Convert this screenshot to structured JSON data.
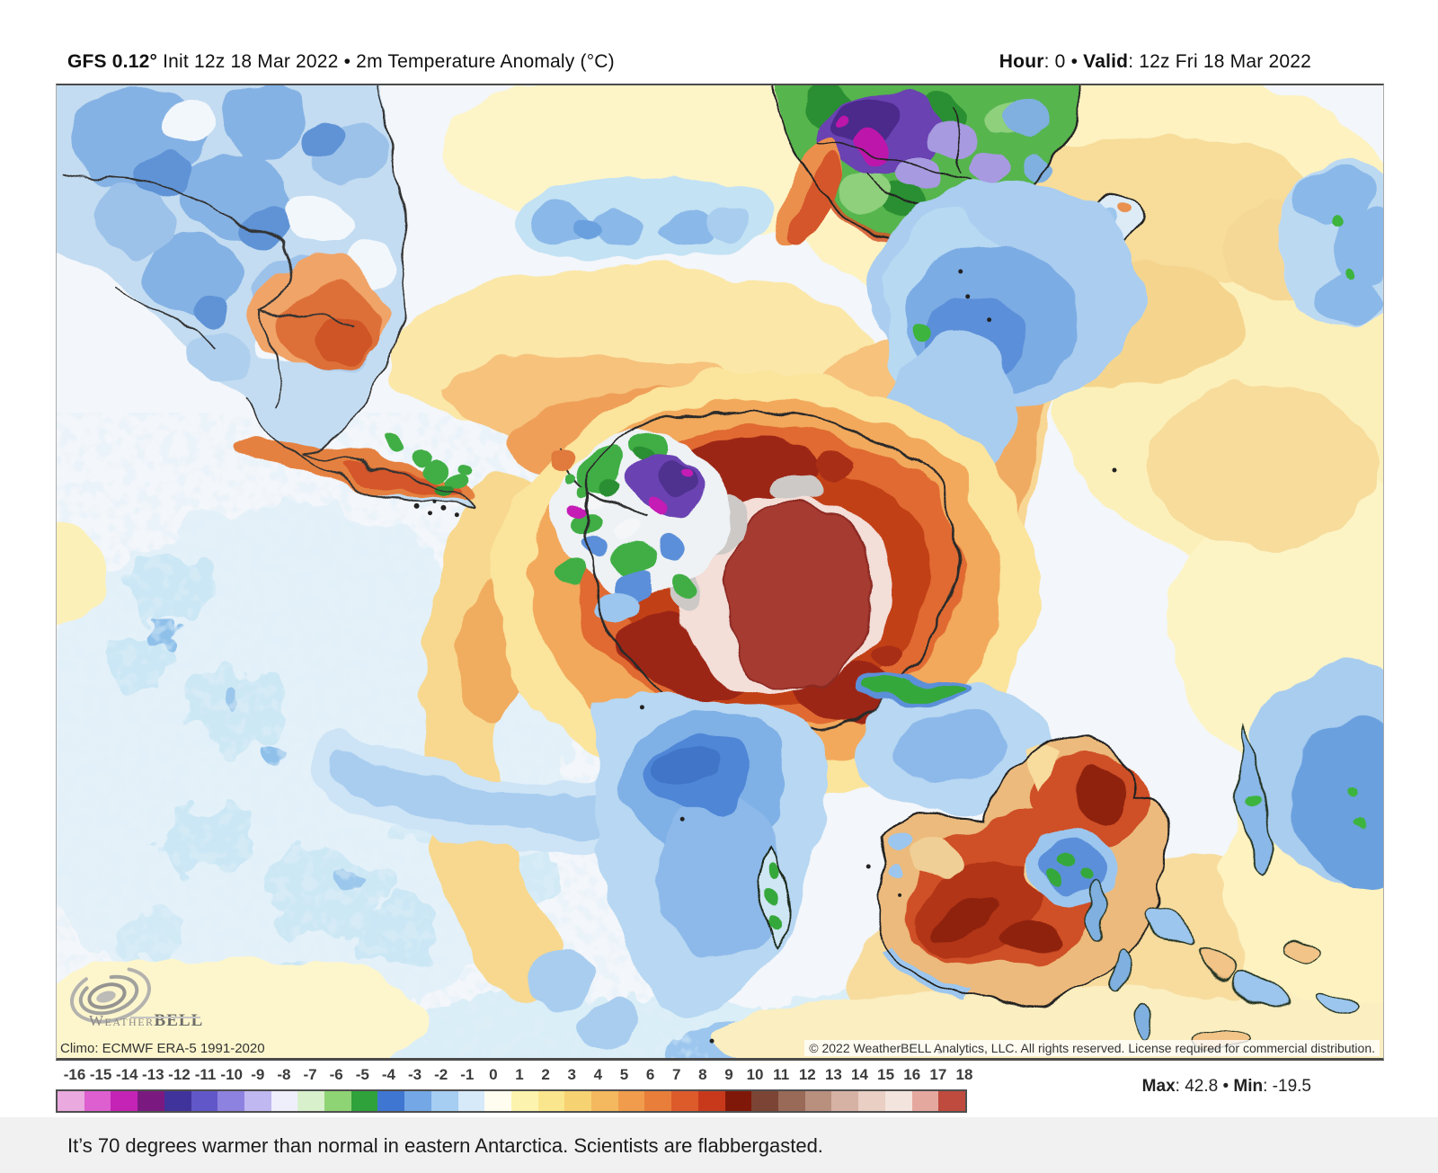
{
  "header": {
    "left": {
      "model": "GFS 0.12°",
      "description": " Init 12z 18 Mar 2022 • 2m Temperature Anomaly (°C)"
    },
    "right": {
      "hour_label": "Hour",
      "hour_value": ": 0",
      "separator": " • ",
      "valid_label": "Valid",
      "valid_value": ": 12z Fri 18 Mar 2022"
    }
  },
  "attribution": {
    "climo": "Climo: ECMWF ERA-5 1991-2020",
    "copyright": "© 2022 WeatherBELL Analytics, LLC. All rights reserved. License required for commercial distribution."
  },
  "logo": {
    "icon": "hurricane-swirl-icon",
    "brand_first": "Weather",
    "brand_second": "BELL"
  },
  "scale": {
    "title_implicit": "2m Temperature Anomaly (°C)",
    "ticks": [
      "-16",
      "-15",
      "-14",
      "-13",
      "-12",
      "-11",
      "-10",
      "-9",
      "-8",
      "-7",
      "-6",
      "-5",
      "-4",
      "-3",
      "-2",
      "-1",
      "0",
      "1",
      "2",
      "3",
      "4",
      "5",
      "6",
      "7",
      "8",
      "9",
      "10",
      "11",
      "12",
      "13",
      "14",
      "15",
      "16",
      "17",
      "18"
    ],
    "cell_colors": [
      "#eaa9df",
      "#dd5fd0",
      "#c423b6",
      "#7a1a80",
      "#41339c",
      "#6257c8",
      "#8d82e0",
      "#c0b8f0",
      "#eeeffb",
      "#d8f0cc",
      "#8ed474",
      "#2fa23c",
      "#3f76d2",
      "#74a7e6",
      "#a6cdf2",
      "#d6eafa",
      "#fffdf0",
      "#fcf3ae",
      "#fae68c",
      "#f7d272",
      "#f4b85e",
      "#f09c4c",
      "#e97e3a",
      "#dd5a2a",
      "#c8391c",
      "#801809",
      "#7b4434",
      "#9a6a58",
      "#b98f7e",
      "#d6b2a5",
      "#e9cfc4",
      "#f4e4de",
      "#e5a89f",
      "#bf4a3e"
    ],
    "max_label": "Max",
    "max_value": ": 42.8",
    "separator": " • ",
    "min_label": "Min",
    "min_value": ": -19.5"
  },
  "caption": {
    "text": "It’s 70 degrees warmer than normal in eastern Antarctica. Scientists are flabbergasted."
  }
}
